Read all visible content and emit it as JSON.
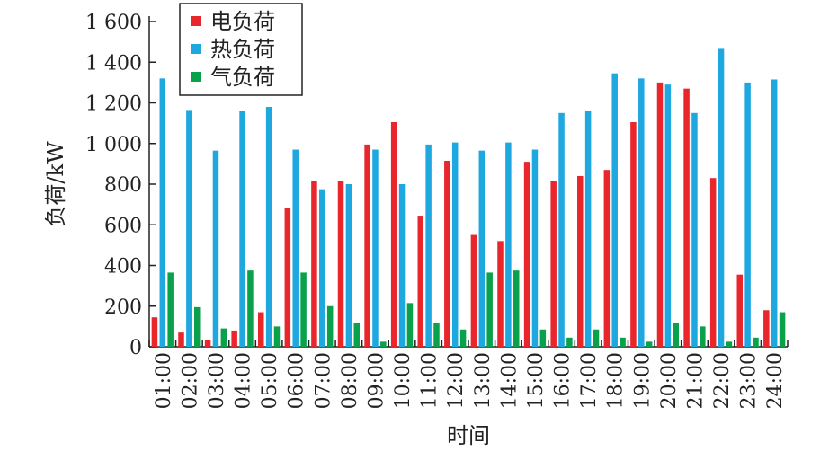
{
  "chart_data": {
    "type": "bar",
    "xlabel": "时间",
    "ylabel": "负荷/kW",
    "ylim": [
      0,
      1600
    ],
    "y_ticks": [
      0,
      200,
      400,
      600,
      800,
      1000,
      1200,
      1400,
      1600
    ],
    "y_tick_labels": [
      "0",
      "200",
      "400",
      "600",
      "800",
      "1 000",
      "1 200",
      "1 400",
      "1 600"
    ],
    "legend_position": "top-left",
    "grid": false,
    "categories": [
      "01:00",
      "02:00",
      "03:00",
      "04:00",
      "05:00",
      "06:00",
      "07:00",
      "08:00",
      "09:00",
      "10:00",
      "11:00",
      "12:00",
      "13:00",
      "14:00",
      "15:00",
      "16:00",
      "17:00",
      "18:00",
      "19:00",
      "20:00",
      "21:00",
      "22:00",
      "23:00",
      "24:00"
    ],
    "series": [
      {
        "name": "电负荷",
        "color": "#e8262b",
        "values": [
          145,
          70,
          35,
          80,
          170,
          685,
          815,
          815,
          995,
          1105,
          645,
          915,
          550,
          520,
          910,
          815,
          840,
          870,
          1105,
          1300,
          1270,
          830,
          355,
          180
        ]
      },
      {
        "name": "热负荷",
        "color": "#1fa8e0",
        "values": [
          1320,
          1165,
          965,
          1160,
          1180,
          970,
          775,
          800,
          970,
          800,
          995,
          1005,
          965,
          1005,
          970,
          1150,
          1160,
          1345,
          1320,
          1290,
          1150,
          1470,
          1300,
          1315
        ]
      },
      {
        "name": "气负荷",
        "color": "#0aa14b",
        "values": [
          365,
          195,
          90,
          375,
          100,
          365,
          200,
          115,
          25,
          215,
          115,
          85,
          365,
          375,
          85,
          45,
          85,
          45,
          25,
          115,
          100,
          25,
          45,
          170
        ]
      }
    ]
  }
}
